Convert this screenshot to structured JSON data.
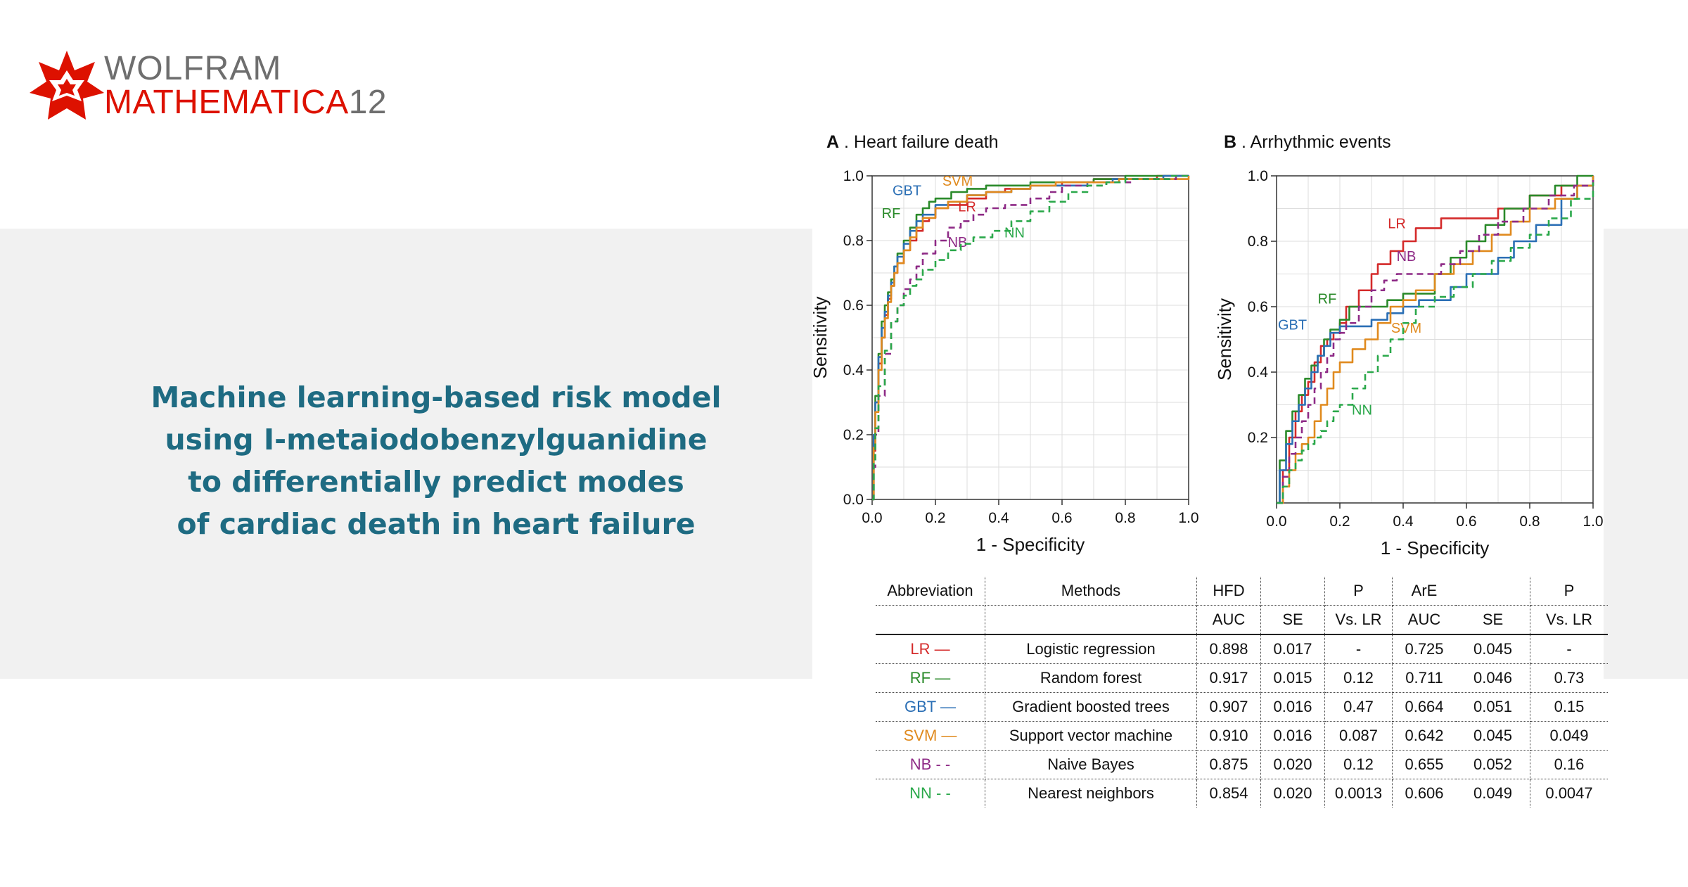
{
  "logo": {
    "word": "WOLFRAM",
    "product": "MATHEMATICA",
    "version": "12",
    "colors": {
      "red": "#dd1100",
      "gray": "#6e6e6e"
    }
  },
  "headline": [
    "Machine learning-based risk model",
    "using I-metaiodobenzylguanidine",
    "to differentially predict modes",
    "of cardiac death in heart failure"
  ],
  "colors": {
    "band": "#f1f1f1",
    "headline": "#1e6b82",
    "LR": "#d42a2a",
    "RF": "#2a8a2a",
    "GBT": "#2b6fb5",
    "SVM": "#e08a1e",
    "NB": "#8e2a86",
    "NN": "#2aa84a"
  },
  "chart_data": [
    {
      "type": "line",
      "panel_letter": "A",
      "title": ". Heart failure death",
      "xlabel": "1 - Specificity",
      "ylabel": "Sensitivity",
      "xlim": [
        0,
        1
      ],
      "ylim": [
        0,
        1
      ],
      "xticks": [
        "0.0",
        "0.2",
        "0.4",
        "0.6",
        "0.8",
        "1.0"
      ],
      "yticks": [
        "0.0",
        "0.2",
        "0.4",
        "0.6",
        "0.8",
        "1.0"
      ],
      "grid": true,
      "series": [
        {
          "name": "LR",
          "color": "#d42a2a",
          "dashed": false,
          "label_at": [
            0.3,
            0.89
          ],
          "x": [
            0,
            0.005,
            0.01,
            0.02,
            0.03,
            0.04,
            0.05,
            0.06,
            0.07,
            0.08,
            0.1,
            0.12,
            0.14,
            0.16,
            0.18,
            0.2,
            0.24,
            0.3,
            0.36,
            0.42,
            0.5,
            0.6,
            0.7,
            0.8,
            0.9,
            1.0
          ],
          "y": [
            0,
            0.15,
            0.3,
            0.42,
            0.5,
            0.57,
            0.62,
            0.66,
            0.7,
            0.73,
            0.77,
            0.8,
            0.83,
            0.86,
            0.87,
            0.9,
            0.91,
            0.93,
            0.95,
            0.96,
            0.97,
            0.98,
            0.99,
            0.99,
            1.0,
            1.0
          ]
        },
        {
          "name": "RF",
          "color": "#2a8a2a",
          "dashed": false,
          "label_at": [
            0.06,
            0.87
          ],
          "x": [
            0,
            0.005,
            0.01,
            0.02,
            0.03,
            0.04,
            0.05,
            0.06,
            0.07,
            0.08,
            0.1,
            0.12,
            0.14,
            0.16,
            0.18,
            0.2,
            0.25,
            0.3,
            0.36,
            0.44,
            0.5,
            0.6,
            0.7,
            0.8,
            0.9,
            1.0
          ],
          "y": [
            0,
            0.18,
            0.32,
            0.45,
            0.55,
            0.6,
            0.64,
            0.68,
            0.72,
            0.76,
            0.8,
            0.84,
            0.88,
            0.9,
            0.92,
            0.93,
            0.95,
            0.96,
            0.97,
            0.97,
            0.98,
            0.98,
            0.99,
            1.0,
            1.0,
            1.0
          ]
        },
        {
          "name": "GBT",
          "color": "#2b6fb5",
          "dashed": false,
          "label_at": [
            0.11,
            0.94
          ],
          "x": [
            0,
            0.005,
            0.01,
            0.02,
            0.03,
            0.04,
            0.05,
            0.06,
            0.07,
            0.08,
            0.1,
            0.12,
            0.14,
            0.16,
            0.2,
            0.24,
            0.3,
            0.36,
            0.44,
            0.5,
            0.58,
            0.68,
            0.76,
            0.84,
            0.92,
            1.0
          ],
          "y": [
            0,
            0.2,
            0.3,
            0.44,
            0.53,
            0.58,
            0.63,
            0.67,
            0.72,
            0.75,
            0.79,
            0.83,
            0.86,
            0.88,
            0.91,
            0.92,
            0.94,
            0.95,
            0.96,
            0.97,
            0.97,
            0.98,
            0.99,
            0.99,
            1.0,
            1.0
          ]
        },
        {
          "name": "SVM",
          "color": "#e08a1e",
          "dashed": false,
          "label_at": [
            0.27,
            0.97
          ],
          "x": [
            0,
            0.005,
            0.01,
            0.02,
            0.03,
            0.04,
            0.05,
            0.06,
            0.07,
            0.08,
            0.1,
            0.12,
            0.14,
            0.16,
            0.2,
            0.24,
            0.3,
            0.36,
            0.44,
            0.5,
            0.58,
            0.68,
            0.78,
            0.88,
            0.96,
            1.0
          ],
          "y": [
            0,
            0.16,
            0.27,
            0.4,
            0.5,
            0.56,
            0.61,
            0.66,
            0.7,
            0.73,
            0.77,
            0.81,
            0.84,
            0.87,
            0.9,
            0.92,
            0.94,
            0.95,
            0.96,
            0.97,
            0.98,
            0.98,
            0.99,
            0.99,
            0.99,
            1.0
          ]
        },
        {
          "name": "NB",
          "color": "#8e2a86",
          "dashed": true,
          "label_at": [
            0.27,
            0.78
          ],
          "x": [
            0,
            0.005,
            0.01,
            0.02,
            0.04,
            0.06,
            0.08,
            0.1,
            0.12,
            0.14,
            0.16,
            0.2,
            0.24,
            0.28,
            0.32,
            0.36,
            0.42,
            0.5,
            0.56,
            0.6,
            0.66,
            0.74,
            0.82,
            0.9,
            0.96,
            1.0
          ],
          "y": [
            0,
            0.1,
            0.2,
            0.32,
            0.45,
            0.55,
            0.6,
            0.65,
            0.68,
            0.72,
            0.76,
            0.8,
            0.84,
            0.86,
            0.88,
            0.9,
            0.91,
            0.93,
            0.95,
            0.97,
            0.97,
            0.98,
            0.99,
            0.99,
            1.0,
            1.0
          ]
        },
        {
          "name": "NN",
          "color": "#2aa84a",
          "dashed": true,
          "label_at": [
            0.45,
            0.81
          ],
          "x": [
            0,
            0.005,
            0.01,
            0.02,
            0.04,
            0.06,
            0.08,
            0.1,
            0.12,
            0.14,
            0.16,
            0.2,
            0.24,
            0.28,
            0.32,
            0.38,
            0.44,
            0.5,
            0.56,
            0.62,
            0.68,
            0.74,
            0.8,
            0.88,
            0.94,
            1.0
          ],
          "y": [
            0,
            0.12,
            0.22,
            0.35,
            0.46,
            0.55,
            0.6,
            0.63,
            0.66,
            0.68,
            0.71,
            0.74,
            0.77,
            0.79,
            0.81,
            0.83,
            0.86,
            0.89,
            0.92,
            0.95,
            0.97,
            0.98,
            0.99,
            0.99,
            1.0,
            1.0
          ]
        }
      ]
    },
    {
      "type": "line",
      "panel_letter": "B",
      "title": ". Arrhythmic events",
      "xlabel": "1 - Specificity",
      "ylabel": "Sensitivity",
      "xlim": [
        0,
        1
      ],
      "ylim": [
        0,
        1
      ],
      "xticks": [
        "0.0",
        "0.2",
        "0.4",
        "0.6",
        "0.8",
        "1.0"
      ],
      "yticks": [
        "0.2",
        "0.4",
        "0.6",
        "0.8",
        "1.0"
      ],
      "grid": true,
      "series": [
        {
          "name": "LR",
          "color": "#d42a2a",
          "dashed": false,
          "label_at": [
            0.38,
            0.84
          ],
          "x": [
            0,
            0.02,
            0.04,
            0.06,
            0.08,
            0.1,
            0.12,
            0.14,
            0.16,
            0.18,
            0.2,
            0.22,
            0.26,
            0.3,
            0.32,
            0.36,
            0.4,
            0.44,
            0.48,
            0.52,
            0.56,
            0.62,
            0.7,
            0.8,
            0.9,
            1.0
          ],
          "y": [
            0,
            0.1,
            0.2,
            0.28,
            0.33,
            0.37,
            0.43,
            0.48,
            0.5,
            0.52,
            0.55,
            0.6,
            0.65,
            0.7,
            0.73,
            0.77,
            0.8,
            0.84,
            0.84,
            0.87,
            0.87,
            0.87,
            0.9,
            0.94,
            0.97,
            1.0
          ]
        },
        {
          "name": "RF",
          "color": "#2a8a2a",
          "dashed": false,
          "label_at": [
            0.16,
            0.61
          ],
          "x": [
            0,
            0.01,
            0.03,
            0.05,
            0.07,
            0.09,
            0.11,
            0.13,
            0.15,
            0.17,
            0.2,
            0.23,
            0.26,
            0.3,
            0.35,
            0.4,
            0.45,
            0.5,
            0.55,
            0.6,
            0.66,
            0.72,
            0.8,
            0.88,
            0.95,
            1.0
          ],
          "y": [
            0,
            0.13,
            0.22,
            0.28,
            0.33,
            0.38,
            0.42,
            0.45,
            0.5,
            0.53,
            0.56,
            0.6,
            0.6,
            0.6,
            0.62,
            0.64,
            0.64,
            0.7,
            0.75,
            0.8,
            0.85,
            0.9,
            0.94,
            0.97,
            1.0,
            1.0
          ]
        },
        {
          "name": "GBT",
          "color": "#2b6fb5",
          "dashed": false,
          "label_at": [
            0.05,
            0.53
          ],
          "x": [
            0,
            0.01,
            0.03,
            0.05,
            0.07,
            0.09,
            0.11,
            0.13,
            0.15,
            0.17,
            0.2,
            0.25,
            0.3,
            0.35,
            0.4,
            0.45,
            0.5,
            0.55,
            0.6,
            0.65,
            0.7,
            0.75,
            0.82,
            0.9,
            0.95,
            1.0
          ],
          "y": [
            0,
            0.1,
            0.18,
            0.25,
            0.3,
            0.35,
            0.4,
            0.45,
            0.48,
            0.52,
            0.54,
            0.54,
            0.56,
            0.58,
            0.6,
            0.62,
            0.62,
            0.66,
            0.7,
            0.7,
            0.75,
            0.8,
            0.85,
            0.93,
            0.97,
            1.0
          ]
        },
        {
          "name": "SVM",
          "color": "#e08a1e",
          "dashed": false,
          "label_at": [
            0.41,
            0.52
          ],
          "x": [
            0,
            0.02,
            0.04,
            0.06,
            0.08,
            0.1,
            0.12,
            0.14,
            0.16,
            0.18,
            0.2,
            0.24,
            0.28,
            0.32,
            0.36,
            0.4,
            0.44,
            0.5,
            0.56,
            0.62,
            0.68,
            0.74,
            0.8,
            0.88,
            0.95,
            1.0
          ],
          "y": [
            0,
            0.05,
            0.1,
            0.15,
            0.18,
            0.2,
            0.25,
            0.3,
            0.35,
            0.4,
            0.43,
            0.47,
            0.5,
            0.55,
            0.6,
            0.62,
            0.65,
            0.7,
            0.73,
            0.77,
            0.82,
            0.86,
            0.9,
            0.93,
            0.97,
            1.0
          ]
        },
        {
          "name": "NB",
          "color": "#8e2a86",
          "dashed": true,
          "label_at": [
            0.41,
            0.74
          ],
          "x": [
            0,
            0.02,
            0.04,
            0.06,
            0.08,
            0.1,
            0.12,
            0.14,
            0.16,
            0.18,
            0.2,
            0.22,
            0.26,
            0.3,
            0.34,
            0.38,
            0.42,
            0.46,
            0.52,
            0.58,
            0.64,
            0.7,
            0.78,
            0.86,
            0.94,
            1.0
          ],
          "y": [
            0,
            0.08,
            0.15,
            0.2,
            0.25,
            0.3,
            0.35,
            0.4,
            0.45,
            0.5,
            0.52,
            0.55,
            0.6,
            0.65,
            0.68,
            0.7,
            0.7,
            0.7,
            0.73,
            0.77,
            0.82,
            0.86,
            0.9,
            0.94,
            0.97,
            1.0
          ]
        },
        {
          "name": "NN",
          "color": "#2aa84a",
          "dashed": true,
          "label_at": [
            0.27,
            0.27
          ],
          "x": [
            0,
            0.02,
            0.04,
            0.06,
            0.08,
            0.1,
            0.12,
            0.14,
            0.16,
            0.18,
            0.2,
            0.24,
            0.28,
            0.32,
            0.36,
            0.4,
            0.44,
            0.5,
            0.56,
            0.62,
            0.68,
            0.74,
            0.8,
            0.86,
            0.93,
            1.0
          ],
          "y": [
            0,
            0.05,
            0.1,
            0.13,
            0.16,
            0.18,
            0.2,
            0.22,
            0.25,
            0.28,
            0.3,
            0.35,
            0.4,
            0.45,
            0.5,
            0.55,
            0.6,
            0.63,
            0.66,
            0.7,
            0.74,
            0.78,
            0.82,
            0.87,
            0.93,
            0.98
          ]
        }
      ]
    }
  ],
  "table": {
    "header1": [
      "Abbreviation",
      "Methods",
      "HFD",
      "",
      "P",
      "ArE",
      "",
      "P"
    ],
    "header2": [
      "",
      "",
      "AUC",
      "SE",
      "Vs. LR",
      "AUC",
      "SE",
      "Vs. LR"
    ],
    "rows": [
      {
        "abbr": "LR —",
        "color": "#d42a2a",
        "cells": [
          "Logistic regression",
          "0.898",
          "0.017",
          "-",
          "0.725",
          "0.045",
          "-"
        ]
      },
      {
        "abbr": "RF —",
        "color": "#2a8a2a",
        "cells": [
          "Random forest",
          "0.917",
          "0.015",
          "0.12",
          "0.711",
          "0.046",
          "0.73"
        ]
      },
      {
        "abbr": "GBT —",
        "color": "#2b6fb5",
        "cells": [
          "Gradient boosted trees",
          "0.907",
          "0.016",
          "0.47",
          "0.664",
          "0.051",
          "0.15"
        ]
      },
      {
        "abbr": "SVM —",
        "color": "#e08a1e",
        "cells": [
          "Support vector machine",
          "0.910",
          "0.016",
          "0.087",
          "0.642",
          "0.045",
          "0.049"
        ]
      },
      {
        "abbr": "NB - -",
        "color": "#8e2a86",
        "cells": [
          "Naive Bayes",
          "0.875",
          "0.020",
          "0.12",
          "0.655",
          "0.052",
          "0.16"
        ]
      },
      {
        "abbr": "NN - -",
        "color": "#2aa84a",
        "cells": [
          "Nearest neighbors",
          "0.854",
          "0.020",
          "0.0013",
          "0.606",
          "0.049",
          "0.0047"
        ]
      }
    ]
  }
}
